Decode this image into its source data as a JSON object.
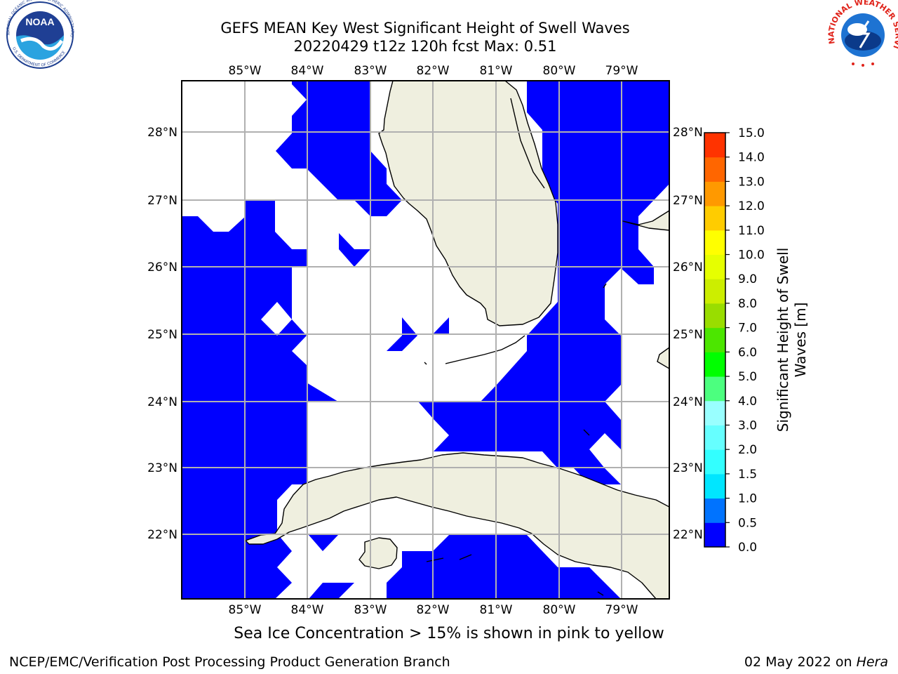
{
  "header": {
    "title_line1": "GEFS MEAN Key West Significant Height of Swell Waves",
    "title_line2": "20220429 t12z 120h fcst   Max: 0.51"
  },
  "logos": {
    "noaa_text": "NOAA",
    "noaa_ring_top": "NATIONAL OCEANIC AND ATMOSPHERIC ADMINISTRATION",
    "noaa_ring_bottom": "U.S. DEPARTMENT OF COMMERCE",
    "nws_ring_top": "NATIONAL WEATHER SERVICE"
  },
  "map": {
    "lon_labels": [
      "85°W",
      "84°W",
      "83°W",
      "82°W",
      "81°W",
      "80°W",
      "79°W"
    ],
    "lat_labels": [
      "28°N",
      "27°N",
      "26°N",
      "25°N",
      "24°N",
      "23°N",
      "22°N"
    ],
    "water_color": "#0000ff",
    "land_color": "#efefdf"
  },
  "colorbar": {
    "label_line1": "Significant Height of Swell",
    "label_line2": "Waves [m]",
    "ticks": [
      "0.0",
      "0.5",
      "1.0",
      "1.5",
      "2.0",
      "3.0",
      "4.0",
      "5.0",
      "6.0",
      "7.0",
      "8.0",
      "9.0",
      "10.0",
      "11.0",
      "12.0",
      "13.0",
      "14.0",
      "15.0"
    ],
    "colors": [
      "#0000ff",
      "#0073ff",
      "#00e6ff",
      "#33ffff",
      "#66ffff",
      "#99ffff",
      "#4cff7f",
      "#00ff00",
      "#4ce600",
      "#99dd00",
      "#ccee00",
      "#e6ff00",
      "#ffff00",
      "#ffcc00",
      "#ff9900",
      "#ff6600",
      "#ff3300",
      "#ff0000"
    ]
  },
  "footer": {
    "sea_ice_note": "Sea Ice Concentration > 15% is shown in pink to yellow",
    "credit_left": "NCEP/EMC/Verification Post Processing Product Generation Branch",
    "credit_date": "02 May 2022 on ",
    "credit_host": "Hera"
  }
}
